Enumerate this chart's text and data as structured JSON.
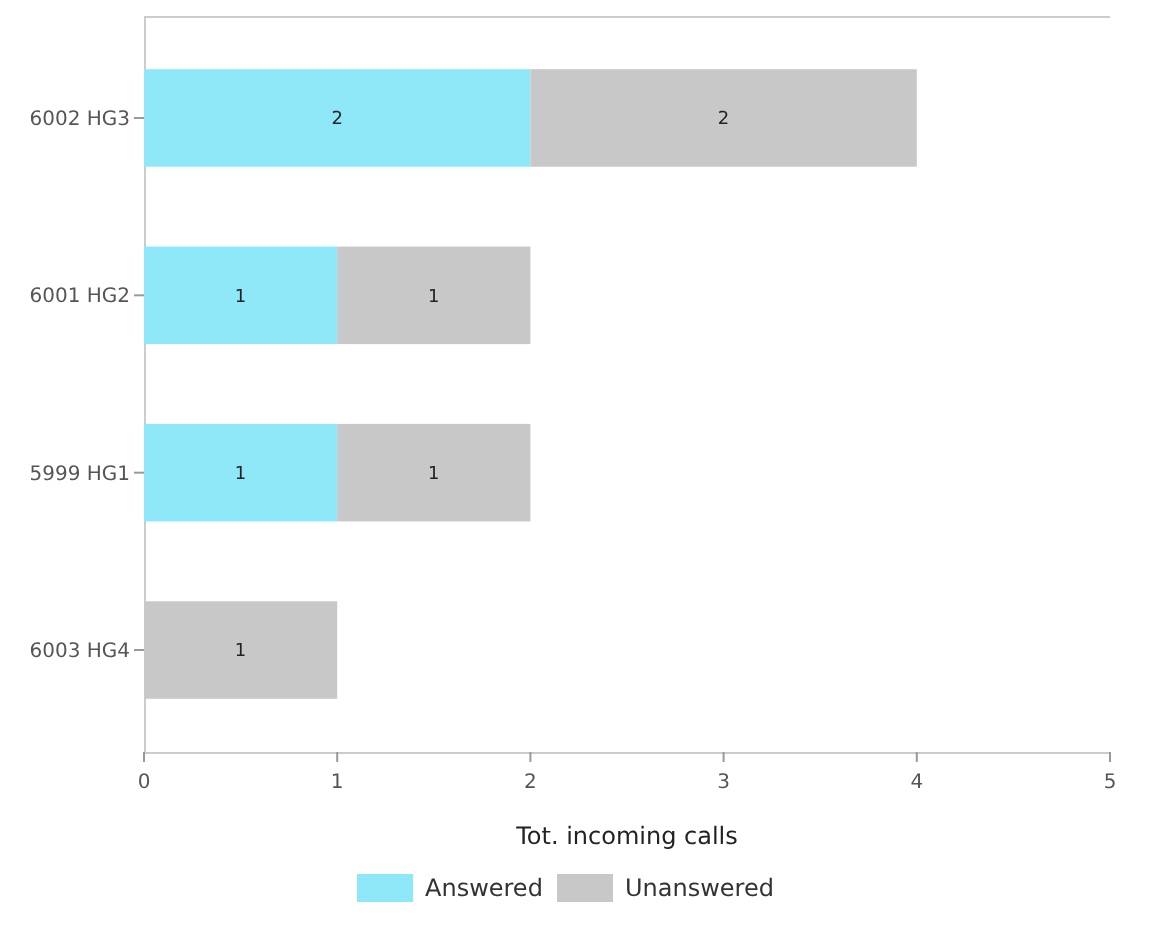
{
  "chart_data": {
    "type": "bar",
    "orientation": "horizontal",
    "stacked": true,
    "categories": [
      "6002 HG3",
      "6001 HG2",
      "5999 HG1",
      "6003 HG4"
    ],
    "series": [
      {
        "name": "Answered",
        "color": "#8ee8f8",
        "values": [
          2,
          1,
          1,
          null
        ]
      },
      {
        "name": "Unanswered",
        "color": "#c8c8c8",
        "values": [
          2,
          1,
          1,
          1
        ]
      }
    ],
    "xlabel": "Tot. incoming calls",
    "xlim": [
      0,
      5
    ],
    "xticks": [
      0,
      1,
      2,
      3,
      4,
      5
    ],
    "data_labels": true,
    "legend": "bottom"
  }
}
